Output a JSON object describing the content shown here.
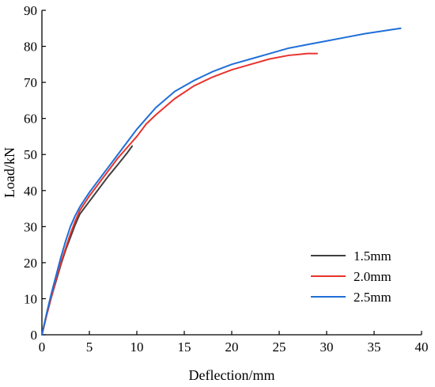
{
  "chart_data": {
    "type": "line",
    "title": "",
    "xlabel": "Deflection/mm",
    "ylabel": "Load/kN",
    "xlim": [
      0,
      40
    ],
    "ylim": [
      0,
      90
    ],
    "xticks": [
      0,
      5,
      10,
      15,
      20,
      25,
      30,
      35,
      40
    ],
    "yticks": [
      0,
      10,
      20,
      30,
      40,
      50,
      60,
      70,
      80,
      90
    ],
    "grid": false,
    "legend_position": "lower-right",
    "series": [
      {
        "name": "1.5mm",
        "color": "#404040",
        "x": [
          0,
          0.5,
          1,
          1.5,
          2,
          2.5,
          3,
          3.5,
          4,
          5,
          6,
          7,
          8,
          9,
          9.5
        ],
        "y": [
          0,
          5.5,
          10.5,
          15,
          19.5,
          23.5,
          27,
          30.5,
          33.5,
          37,
          40.5,
          44,
          47.2,
          50.5,
          52.3
        ]
      },
      {
        "name": "2.0mm",
        "color": "#e8332e",
        "x": [
          0,
          0.5,
          1,
          1.5,
          2,
          2.5,
          3,
          3.5,
          4,
          5,
          6,
          7,
          8,
          9,
          10,
          11,
          12,
          14,
          16,
          18,
          20,
          22,
          24,
          26,
          28,
          29
        ],
        "y": [
          0,
          5.5,
          10.5,
          15.5,
          20,
          24,
          28,
          31.5,
          34.5,
          38.5,
          42,
          45.5,
          49,
          52,
          55,
          58.5,
          61,
          65.5,
          69,
          71.5,
          73.5,
          75,
          76.5,
          77.5,
          78,
          78
        ]
      },
      {
        "name": "2.5mm",
        "color": "#1f6fd8",
        "x": [
          0,
          0.5,
          1,
          1.5,
          2,
          2.5,
          3,
          3.5,
          4,
          5,
          6,
          7,
          8,
          9,
          10,
          11,
          12,
          14,
          16,
          18,
          20,
          22,
          24,
          26,
          28,
          30,
          32,
          34,
          36,
          37.8
        ],
        "y": [
          0,
          6,
          11.5,
          16.5,
          21.5,
          26,
          30,
          33,
          35.5,
          39.5,
          43,
          46.5,
          50,
          53.5,
          57,
          60,
          63,
          67.5,
          70.5,
          73,
          75,
          76.5,
          78,
          79.5,
          80.5,
          81.5,
          82.5,
          83.5,
          84.3,
          85
        ]
      }
    ]
  }
}
